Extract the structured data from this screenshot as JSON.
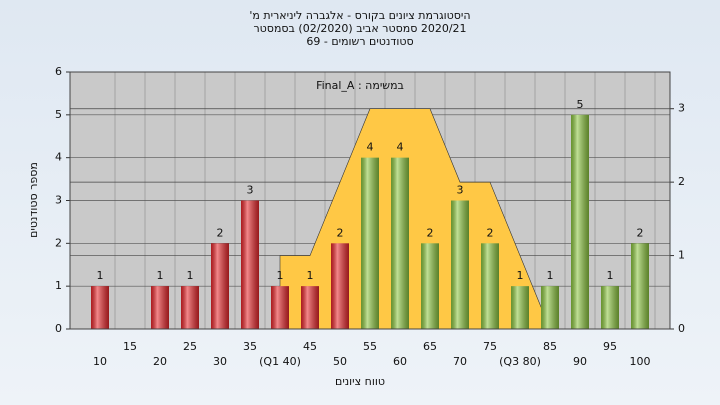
{
  "chart_data": {
    "type": "bar",
    "title": "היסטוגרמת ציונים בקורס - אלגברה ליניארית מ'",
    "subtitle": "2020/21  סמסטר אביב  (02/2020)  בסמסטר",
    "subtitle2": "סטודנטים רשומים - 69",
    "annotation": "במשימה : Final_A",
    "x_label": "טווח ציונים",
    "y_label": "מספר סטודנטים",
    "categories": [
      "10",
      "15",
      "20",
      "25",
      "30",
      "35",
      "(Q1 40)",
      "45",
      "50",
      "55",
      "60",
      "65",
      "70",
      "75",
      "(Q3 80)",
      "85",
      "90",
      "95",
      "100"
    ],
    "values": [
      1,
      null,
      1,
      1,
      2,
      3,
      1,
      1,
      2,
      4,
      4,
      2,
      3,
      2,
      1,
      1,
      5,
      1,
      2
    ],
    "bar_colors": [
      "#e8262a",
      "#e8262a",
      "#e8262a",
      "#e8262a",
      "#e8262a",
      "#e8262a",
      "#e8262a",
      "#e8262a",
      "#e8262a",
      "#8cc63f",
      "#8cc63f",
      "#8cc63f",
      "#8cc63f",
      "#8cc63f",
      "#8cc63f",
      "#8cc63f",
      "#8cc63f",
      "#8cc63f",
      "#8cc63f"
    ],
    "xlim": [
      5,
      105
    ],
    "ylim": [
      0,
      6
    ],
    "yticks": [
      0,
      1,
      2,
      3,
      4,
      5,
      6
    ],
    "y2lim": [
      0,
      3.5
    ],
    "y2ticks": [
      0,
      1,
      2,
      3
    ],
    "area": {
      "x": [
        40,
        45,
        55,
        65,
        70,
        75,
        85
      ],
      "values": [
        1,
        1,
        3,
        3,
        2,
        2,
        0
      ],
      "color": "#ffc845",
      "axis": "y2"
    },
    "grid": true
  }
}
